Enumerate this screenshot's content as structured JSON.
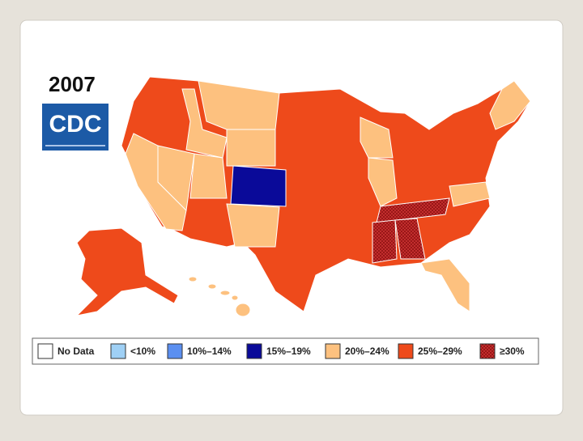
{
  "header": {
    "title": "2007",
    "logo": "CDC"
  },
  "legend": [
    {
      "label": "No Data",
      "color": "#ffffff"
    },
    {
      "label": "<10%",
      "color": "#9fd0f5"
    },
    {
      "label": "10%–14%",
      "color": "#5b8ff0"
    },
    {
      "label": "15%–19%",
      "color": "#0a0a99"
    },
    {
      "label": "20%–24%",
      "color": "#fdc17f"
    },
    {
      "label": "25%–29%",
      "color": "#ee4a1b"
    },
    {
      "label": "≥30%",
      "color": "#8e1010"
    }
  ]
}
